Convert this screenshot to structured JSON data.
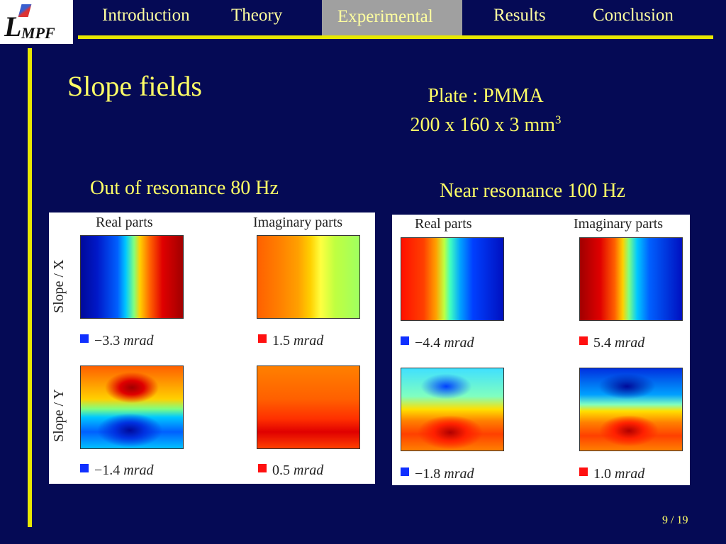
{
  "logo": {
    "letter": "L",
    "sub": "MPF"
  },
  "nav": {
    "items": [
      {
        "label": "Introduction"
      },
      {
        "label": "Theory"
      },
      {
        "label": "Experimental"
      },
      {
        "label": "Results"
      },
      {
        "label": "Conclusion"
      }
    ],
    "active_index": 2
  },
  "slide": {
    "title": "Slope fields",
    "plate_line1": "Plate : PMMA",
    "plate_line2": "200 x 160 x 3 mm",
    "plate_sup": "3"
  },
  "panels": [
    {
      "caption": "Out of resonance 80 Hz",
      "col_real": "Real parts",
      "col_imag": "Imaginary parts",
      "row_x": "Slope / X",
      "row_y": "Slope / Y",
      "x_real_val": "−3.3",
      "x_imag_val": "1.5",
      "y_real_val": "−1.4",
      "y_imag_val": "0.5",
      "unit": "mrad"
    },
    {
      "caption": "Near resonance 100 Hz",
      "col_real": "Real parts",
      "col_imag": "Imaginary parts",
      "x_real_val": "−4.4",
      "x_imag_val": "5.4",
      "y_real_val": "−1.8",
      "y_imag_val": "1.0",
      "unit": "mrad"
    }
  ],
  "colors": {
    "background": "#050a55",
    "accent": "#e8e800",
    "text": "#ffff66",
    "active_tab": "#a0a0a0"
  },
  "page": {
    "number": "9 / 19"
  }
}
